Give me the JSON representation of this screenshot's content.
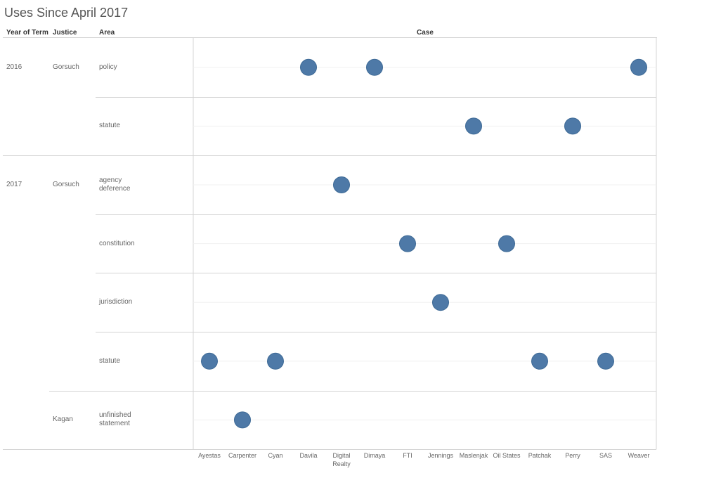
{
  "title": "Uses Since April 2017",
  "headers": {
    "year": "Year of Term",
    "justice": "Justice",
    "area": "Area",
    "case": "Case"
  },
  "rows": [
    {
      "year": "2016",
      "justice": "Gorsuch",
      "area": "policy"
    },
    {
      "year": "",
      "justice": "",
      "area": "statute"
    },
    {
      "year": "2017",
      "justice": "Gorsuch",
      "area": "agency\ndeference"
    },
    {
      "year": "",
      "justice": "",
      "area": "constitution"
    },
    {
      "year": "",
      "justice": "",
      "area": "jurisdiction"
    },
    {
      "year": "",
      "justice": "",
      "area": "statute"
    },
    {
      "year": "",
      "justice": "Kagan",
      "area": "unfinished\nstatement"
    }
  ],
  "chart_data": {
    "type": "scatter",
    "title": "Uses Since April 2017",
    "xlabel": "Case",
    "categories": [
      "Ayestas",
      "Carpenter",
      "Cyan",
      "Davila",
      "Digital\nRealty",
      "Dimaya",
      "FTI",
      "Jennings",
      "Maslenjak",
      "Oil States",
      "Patchak",
      "Perry",
      "SAS",
      "Weaver"
    ],
    "points": [
      {
        "row": 0,
        "case": "Davila"
      },
      {
        "row": 0,
        "case": "Dimaya"
      },
      {
        "row": 0,
        "case": "Weaver"
      },
      {
        "row": 1,
        "case": "Maslenjak"
      },
      {
        "row": 1,
        "case": "Perry"
      },
      {
        "row": 2,
        "case": "Digital\nRealty"
      },
      {
        "row": 3,
        "case": "FTI"
      },
      {
        "row": 3,
        "case": "Oil States"
      },
      {
        "row": 4,
        "case": "Jennings"
      },
      {
        "row": 5,
        "case": "Ayestas"
      },
      {
        "row": 5,
        "case": "Cyan"
      },
      {
        "row": 5,
        "case": "Patchak"
      },
      {
        "row": 5,
        "case": "SAS"
      },
      {
        "row": 6,
        "case": "Carpenter"
      }
    ],
    "marker_color": "#4e79a7"
  }
}
